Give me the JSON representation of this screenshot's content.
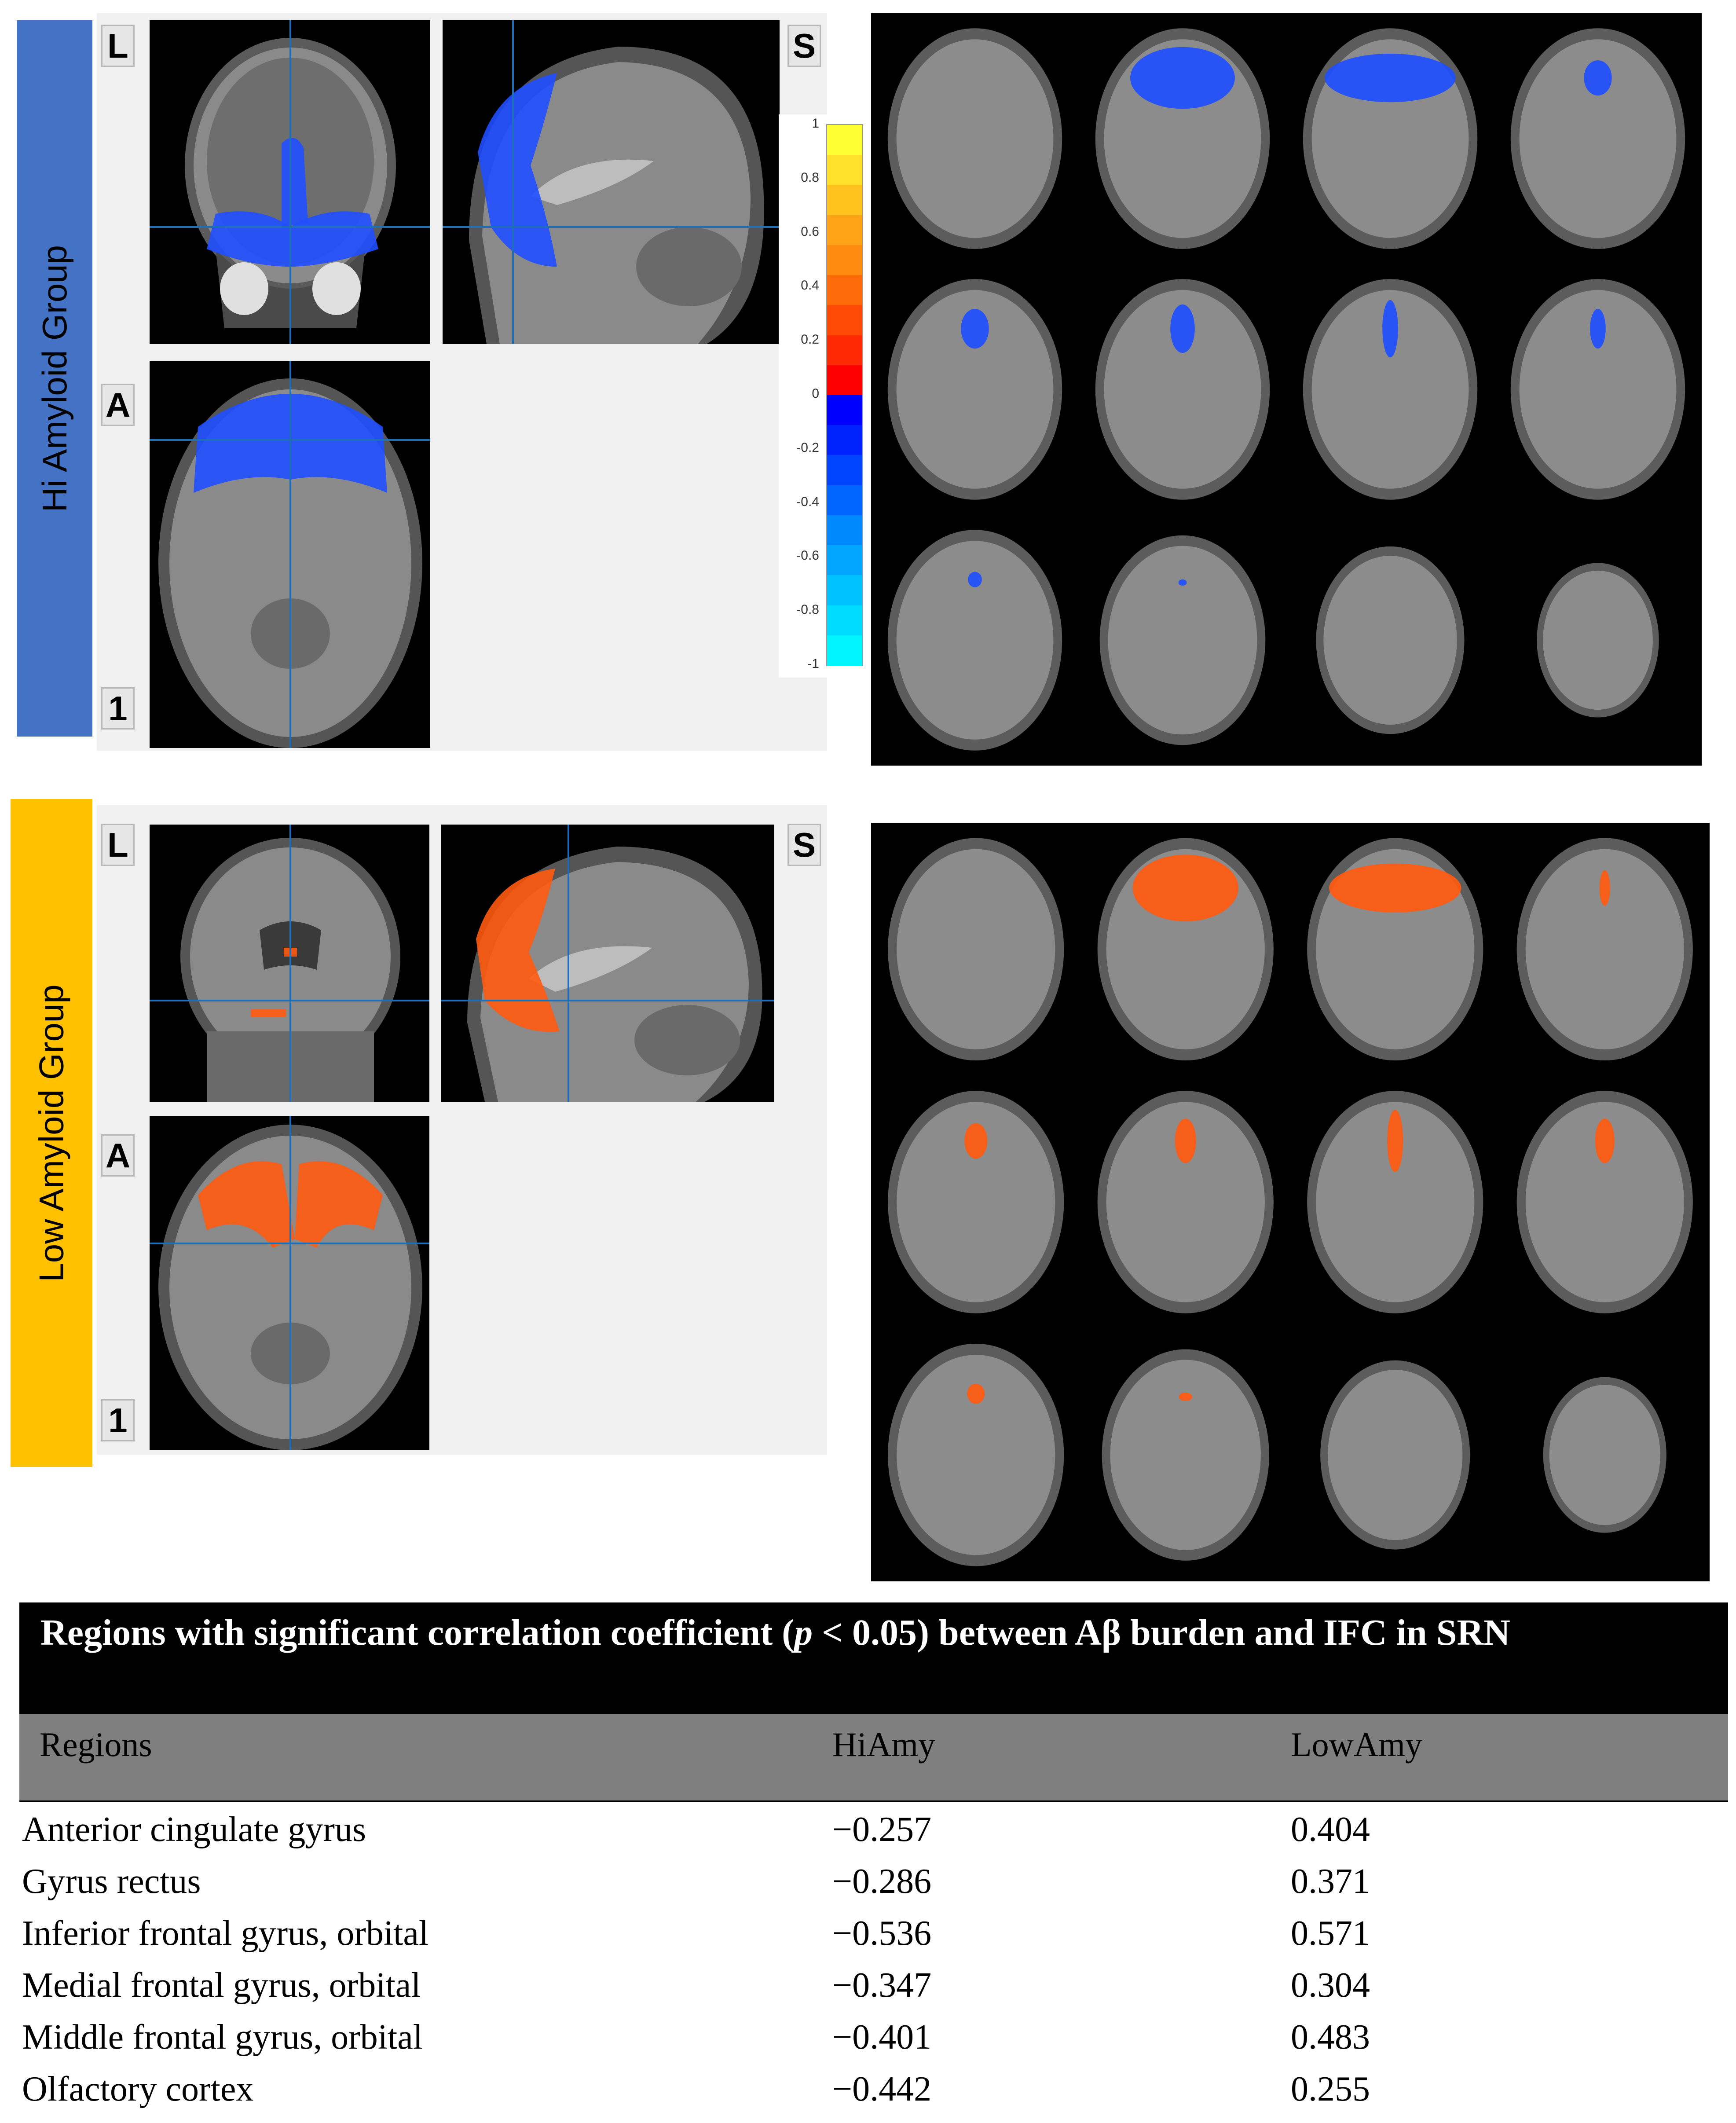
{
  "colorbar": {
    "ticks": [
      "1",
      "0.8",
      "0.6",
      "0.4",
      "0.2",
      "0",
      "-0.2",
      "-0.4",
      "-0.6",
      "-0.8",
      "-1"
    ],
    "colors_positive": [
      "#ffff33",
      "#ffe02a",
      "#ffc21e",
      "#ffa316",
      "#ff8a10",
      "#ff6a0b",
      "#ff4a06",
      "#ff2a03",
      "#ff0000"
    ],
    "colors_negative": [
      "#0000ff",
      "#0022ff",
      "#0044ff",
      "#0066ff",
      "#0088ff",
      "#00a6ff",
      "#00c2ff",
      "#00dcff",
      "#00f5ff"
    ]
  },
  "groups": [
    {
      "label": "Hi Amyloid Group",
      "bar_color": "#4472c4",
      "blob_color": "#1f4fff",
      "orientation_labels": {
        "left": "L",
        "superior": "S",
        "anterior": "A",
        "index": "1"
      }
    },
    {
      "label": "Low Amyloid Group",
      "bar_color": "#ffc000",
      "blob_color": "#ff5a10",
      "orientation_labels": {
        "left": "L",
        "superior": "S",
        "anterior": "A",
        "index": "1"
      }
    }
  ],
  "table": {
    "title_parts": {
      "before_p": "Regions with significant correlation coefficient (",
      "p": "p",
      "after_p": " < 0.05) between Aβ burden and IFC in SRN"
    },
    "headers": [
      "Regions",
      "HiAmy",
      "LowAmy"
    ],
    "rows": [
      [
        "Anterior cingulate gyrus",
        "−0.257",
        "0.404"
      ],
      [
        "Gyrus rectus",
        "−0.286",
        "0.371"
      ],
      [
        "Inferior frontal gyrus, orbital",
        "−0.536",
        "0.571"
      ],
      [
        "Medial frontal gyrus, orbital",
        "−0.347",
        "0.304"
      ],
      [
        "Middle frontal gyrus, orbital",
        "−0.401",
        "0.483"
      ],
      [
        "Olfactory cortex",
        "−0.442",
        "0.255"
      ]
    ]
  }
}
